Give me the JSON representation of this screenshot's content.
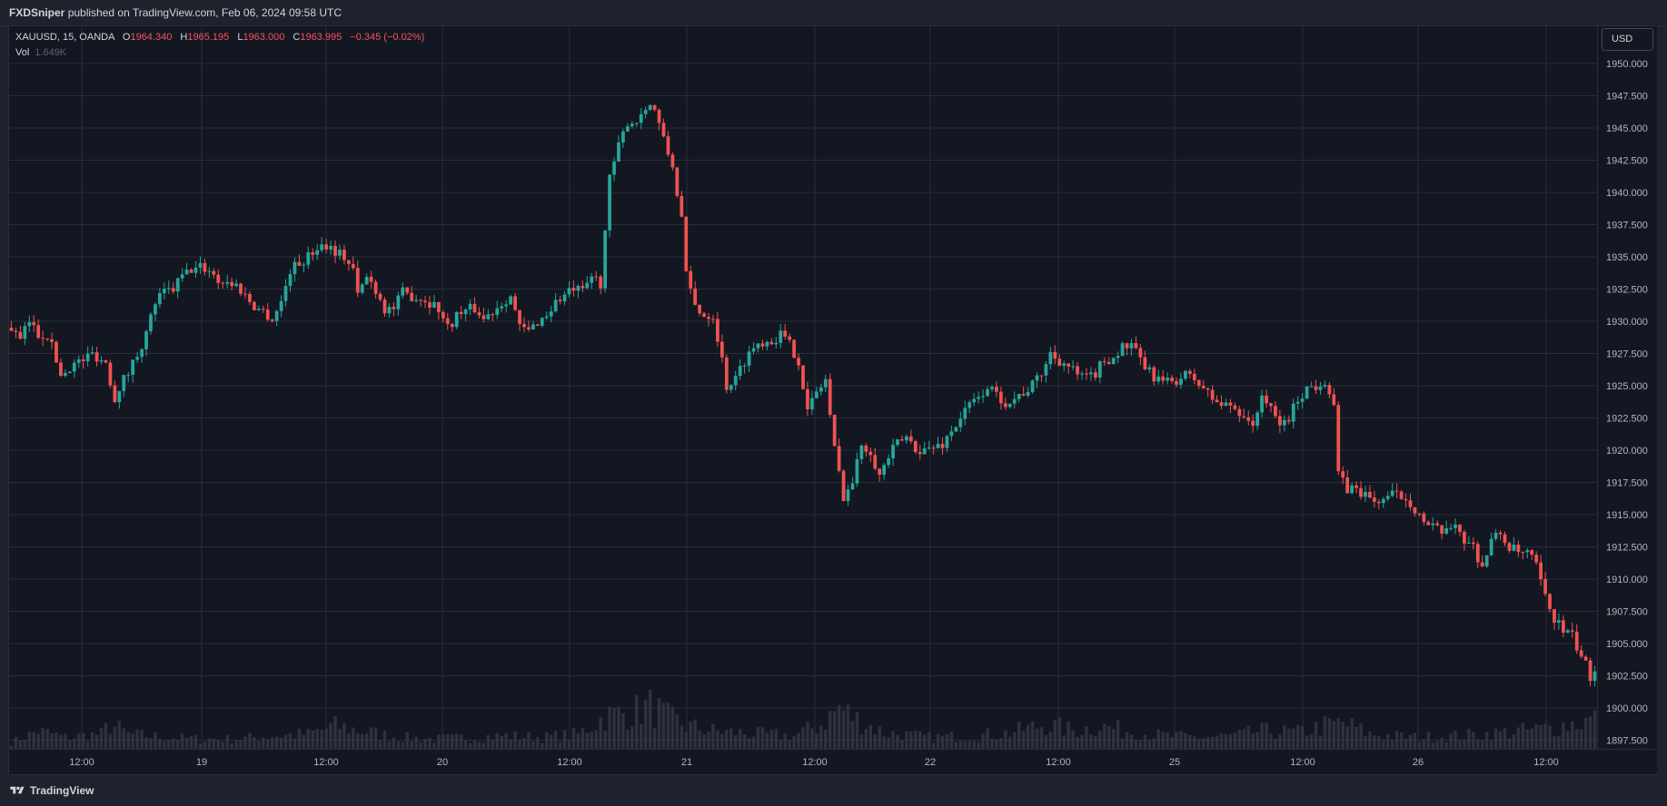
{
  "header": {
    "publisher": "FXDSniper",
    "published_text": "published on TradingView.com, Feb 06, 2024 09:58 UTC"
  },
  "legend": {
    "symbol": "XAUUSD, 15, OANDA",
    "o_label": "O",
    "o_value": "1964.340",
    "h_label": "H",
    "h_value": "1965.195",
    "l_label": "L",
    "l_value": "1963.000",
    "c_label": "C",
    "c_value": "1963.995",
    "change": "−0.345 (−0.02%)",
    "vol_label": "Vol",
    "vol_value": "1.649K"
  },
  "currency_button": "USD",
  "footer": {
    "brand": "TradingView"
  },
  "colors": {
    "up": "#26a69a",
    "down": "#ef5350",
    "background": "#131722",
    "grid": "#2a2e39",
    "volume": "#363a45",
    "axis_text": "#b2b5be"
  },
  "chart_data": {
    "type": "candlestick",
    "symbol": "XAUUSD",
    "interval": "15",
    "y_axis_ticks": [
      "1950.000",
      "1947.500",
      "1945.000",
      "1942.500",
      "1940.000",
      "1937.500",
      "1935.000",
      "1932.500",
      "1930.000",
      "1927.500",
      "1925.000",
      "1922.500",
      "1920.000",
      "1917.500",
      "1915.000",
      "1912.500",
      "1910.000",
      "1907.500",
      "1905.000",
      "1902.500",
      "1900.000",
      "1897.500"
    ],
    "ylim": [
      1897.5,
      1950.0
    ],
    "x_axis_ticks": [
      "12:00",
      "19",
      "12:00",
      "20",
      "12:00",
      "21",
      "12:00",
      "22",
      "12:00",
      "25",
      "12:00",
      "26",
      "12:00"
    ],
    "grid": true,
    "close_path": [
      [
        0,
        1929.5
      ],
      [
        2,
        1928.5
      ],
      [
        4,
        1930.0
      ],
      [
        6,
        1929.0
      ],
      [
        8,
        1929.0
      ],
      [
        10,
        1927.0
      ],
      [
        11,
        1925.8
      ],
      [
        13,
        1926.5
      ],
      [
        16,
        1927.0
      ],
      [
        18,
        1927.5
      ],
      [
        21,
        1926.8
      ],
      [
        23,
        1924.0
      ],
      [
        24,
        1925.0
      ],
      [
        26,
        1926.0
      ],
      [
        28,
        1927.5
      ],
      [
        30,
        1929.0
      ],
      [
        32,
        1931.5
      ],
      [
        34,
        1932.2
      ],
      [
        36,
        1932.5
      ],
      [
        38,
        1933.5
      ],
      [
        40,
        1934.0
      ],
      [
        42,
        1934.2
      ],
      [
        44,
        1934.0
      ],
      [
        46,
        1933.2
      ],
      [
        48,
        1933.0
      ],
      [
        50,
        1932.8
      ],
      [
        52,
        1932.0
      ],
      [
        54,
        1931.2
      ],
      [
        56,
        1930.8
      ],
      [
        58,
        1930.2
      ],
      [
        60,
        1931.5
      ],
      [
        62,
        1934.0
      ],
      [
        64,
        1934.5
      ],
      [
        66,
        1935.0
      ],
      [
        68,
        1935.8
      ],
      [
        70,
        1936.0
      ],
      [
        72,
        1935.5
      ],
      [
        74,
        1935.0
      ],
      [
        76,
        1934.0
      ],
      [
        77,
        1932.0
      ],
      [
        79,
        1933.5
      ],
      [
        81,
        1932.5
      ],
      [
        83,
        1931.0
      ],
      [
        85,
        1931.0
      ],
      [
        87,
        1932.2
      ],
      [
        89,
        1932.0
      ],
      [
        91,
        1931.8
      ],
      [
        93,
        1931.5
      ],
      [
        95,
        1931.0
      ],
      [
        97,
        1929.5
      ],
      [
        99,
        1930.5
      ],
      [
        101,
        1930.8
      ],
      [
        103,
        1931.0
      ],
      [
        105,
        1930.2
      ],
      [
        107,
        1930.8
      ],
      [
        109,
        1931.5
      ],
      [
        111,
        1932.0
      ],
      [
        113,
        1929.5
      ],
      [
        115,
        1929.2
      ],
      [
        117,
        1930.0
      ],
      [
        119,
        1930.5
      ],
      [
        121,
        1931.5
      ],
      [
        123,
        1932.0
      ],
      [
        125,
        1932.5
      ],
      [
        127,
        1932.2
      ],
      [
        129,
        1933.5
      ],
      [
        131,
        1933.0
      ],
      [
        133,
        1941.0
      ],
      [
        135,
        1943.5
      ],
      [
        137,
        1945.5
      ],
      [
        139,
        1945.5
      ],
      [
        141,
        1946.8
      ],
      [
        143,
        1946.5
      ],
      [
        145,
        1944.0
      ],
      [
        147,
        1942.0
      ],
      [
        149,
        1938.0
      ],
      [
        150,
        1933.5
      ],
      [
        152,
        1931.2
      ],
      [
        154,
        1930.5
      ],
      [
        156,
        1930.5
      ],
      [
        158,
        1927.0
      ],
      [
        159,
        1925.0
      ],
      [
        161,
        1925.5
      ],
      [
        163,
        1927.0
      ],
      [
        165,
        1928.0
      ],
      [
        167,
        1928.5
      ],
      [
        169,
        1928.5
      ],
      [
        171,
        1929.0
      ],
      [
        173,
        1928.2
      ],
      [
        175,
        1927.0
      ],
      [
        177,
        1923.0
      ],
      [
        179,
        1924.5
      ],
      [
        181,
        1925.5
      ],
      [
        183,
        1920.0
      ],
      [
        185,
        1916.5
      ],
      [
        187,
        1917.5
      ],
      [
        189,
        1920.5
      ],
      [
        191,
        1920.0
      ],
      [
        193,
        1918.0
      ],
      [
        195,
        1919.5
      ],
      [
        197,
        1920.5
      ],
      [
        199,
        1921.0
      ],
      [
        201,
        1920.2
      ],
      [
        203,
        1920.0
      ],
      [
        205,
        1920.2
      ],
      [
        207,
        1920.5
      ],
      [
        209,
        1921.5
      ],
      [
        211,
        1922.5
      ],
      [
        213,
        1923.5
      ],
      [
        215,
        1924.0
      ],
      [
        217,
        1925.0
      ],
      [
        219,
        1924.2
      ],
      [
        221,
        1923.8
      ],
      [
        223,
        1924.0
      ],
      [
        225,
        1924.5
      ],
      [
        227,
        1925.0
      ],
      [
        229,
        1926.0
      ],
      [
        231,
        1927.5
      ],
      [
        233,
        1927.0
      ],
      [
        235,
        1926.5
      ],
      [
        237,
        1925.8
      ],
      [
        239,
        1925.5
      ],
      [
        241,
        1926.0
      ],
      [
        243,
        1927.0
      ],
      [
        245,
        1927.2
      ],
      [
        247,
        1928.0
      ],
      [
        249,
        1928.0
      ],
      [
        251,
        1927.0
      ],
      [
        253,
        1926.0
      ],
      [
        255,
        1925.5
      ],
      [
        257,
        1925.2
      ],
      [
        259,
        1925.5
      ],
      [
        261,
        1925.8
      ],
      [
        263,
        1925.5
      ],
      [
        265,
        1924.8
      ],
      [
        267,
        1924.0
      ],
      [
        269,
        1923.5
      ],
      [
        271,
        1923.5
      ],
      [
        273,
        1923.0
      ],
      [
        275,
        1922.5
      ],
      [
        276,
        1921.5
      ],
      [
        278,
        1924.5
      ],
      [
        280,
        1923.0
      ],
      [
        282,
        1922.0
      ],
      [
        284,
        1922.5
      ],
      [
        286,
        1924.0
      ],
      [
        288,
        1924.8
      ],
      [
        290,
        1925.0
      ],
      [
        292,
        1925.5
      ],
      [
        294,
        1923.5
      ],
      [
        295,
        1918.0
      ],
      [
        297,
        1917.0
      ],
      [
        299,
        1917.0
      ],
      [
        301,
        1916.5
      ],
      [
        303,
        1916.0
      ],
      [
        305,
        1916.2
      ],
      [
        307,
        1916.5
      ],
      [
        309,
        1916.5
      ],
      [
        311,
        1916.0
      ],
      [
        313,
        1915.0
      ],
      [
        315,
        1914.0
      ],
      [
        317,
        1913.8
      ],
      [
        319,
        1913.5
      ],
      [
        321,
        1914.5
      ],
      [
        323,
        1913.0
      ],
      [
        325,
        1912.5
      ],
      [
        327,
        1911.0
      ],
      [
        329,
        1913.0
      ],
      [
        331,
        1913.5
      ],
      [
        333,
        1912.5
      ],
      [
        335,
        1912.0
      ],
      [
        337,
        1912.0
      ],
      [
        339,
        1911.0
      ],
      [
        341,
        1908.5
      ],
      [
        343,
        1907.0
      ],
      [
        345,
        1906.0
      ],
      [
        347,
        1905.5
      ],
      [
        349,
        1904.0
      ],
      [
        351,
        1902.5
      ],
      [
        352,
        1903.0
      ]
    ],
    "volume_envelope": [
      [
        0,
        8
      ],
      [
        6,
        22
      ],
      [
        12,
        14
      ],
      [
        20,
        18
      ],
      [
        22,
        30
      ],
      [
        26,
        18
      ],
      [
        34,
        14
      ],
      [
        42,
        12
      ],
      [
        50,
        12
      ],
      [
        58,
        16
      ],
      [
        66,
        18
      ],
      [
        72,
        28
      ],
      [
        78,
        22
      ],
      [
        86,
        14
      ],
      [
        94,
        12
      ],
      [
        102,
        14
      ],
      [
        110,
        16
      ],
      [
        118,
        14
      ],
      [
        126,
        18
      ],
      [
        132,
        40
      ],
      [
        138,
        45
      ],
      [
        142,
        52
      ],
      [
        146,
        38
      ],
      [
        150,
        28
      ],
      [
        156,
        22
      ],
      [
        166,
        18
      ],
      [
        174,
        16
      ],
      [
        180,
        30
      ],
      [
        184,
        50
      ],
      [
        188,
        36
      ],
      [
        194,
        20
      ],
      [
        204,
        14
      ],
      [
        214,
        16
      ],
      [
        222,
        20
      ],
      [
        230,
        30
      ],
      [
        236,
        22
      ],
      [
        242,
        28
      ],
      [
        248,
        22
      ],
      [
        256,
        16
      ],
      [
        264,
        14
      ],
      [
        272,
        16
      ],
      [
        278,
        22
      ],
      [
        286,
        20
      ],
      [
        292,
        28
      ],
      [
        296,
        32
      ],
      [
        302,
        18
      ],
      [
        312,
        14
      ],
      [
        322,
        16
      ],
      [
        332,
        20
      ],
      [
        340,
        24
      ],
      [
        346,
        30
      ],
      [
        352,
        36
      ]
    ]
  }
}
